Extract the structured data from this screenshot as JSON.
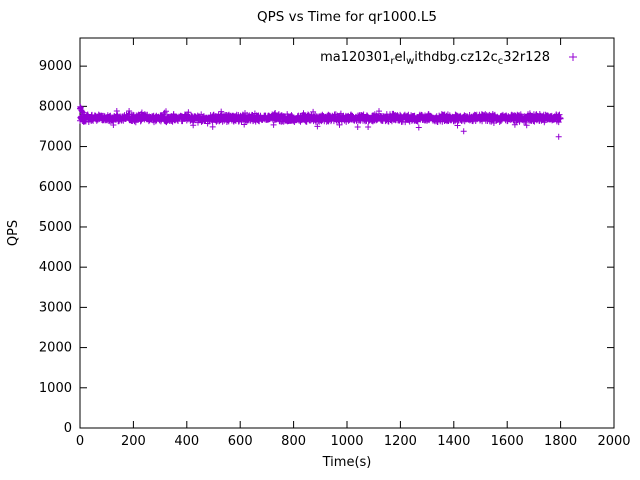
{
  "chart_data": {
    "type": "scatter",
    "title": "QPS vs Time for qr1000.L5",
    "xlabel": "Time(s)",
    "ylabel": "QPS",
    "xlim": [
      0,
      2000
    ],
    "ylim": [
      0,
      9700
    ],
    "xticks": [
      0,
      200,
      400,
      600,
      800,
      1000,
      1200,
      1400,
      1600,
      1800,
      2000
    ],
    "yticks": [
      0,
      1000,
      2000,
      3000,
      4000,
      5000,
      6000,
      7000,
      8000,
      9000
    ],
    "grid": false,
    "legend": {
      "position": "top-right-inside",
      "label_plain": "ma120301_rel_withdbg.cz12c_c32r128",
      "label_segments": [
        {
          "t": "ma120301",
          "sub": false
        },
        {
          "t": "r",
          "sub": true
        },
        {
          "t": "el",
          "sub": false
        },
        {
          "t": "w",
          "sub": true
        },
        {
          "t": "ithdbg.cz12c",
          "sub": false
        },
        {
          "t": "c",
          "sub": true
        },
        {
          "t": "32r128",
          "sub": false
        }
      ]
    },
    "series": [
      {
        "name": "ma120301_rel_withdbg.cz12c_c32r128",
        "color": "#9400d3",
        "marker": "plus",
        "approx_mean_qps": 7710,
        "band": {
          "x_start": 0,
          "x_end": 1800,
          "step": 1,
          "mean": 7710,
          "jitter": 110,
          "seed": 1337,
          "low_stray_prob": 0.012,
          "high_stray_prob": 0.008
        },
        "start_points": [
          [
            0,
            7950
          ],
          [
            1,
            7990
          ],
          [
            2,
            7935
          ],
          [
            3,
            7965
          ],
          [
            5,
            7905
          ],
          [
            7,
            7880
          ],
          [
            9,
            7860
          ],
          [
            12,
            7840
          ]
        ],
        "outliers": [
          [
            1793,
            7245
          ]
        ]
      }
    ]
  },
  "colors": {
    "background": "#ffffff",
    "foreground": "#000000",
    "series": "#9400d3"
  }
}
